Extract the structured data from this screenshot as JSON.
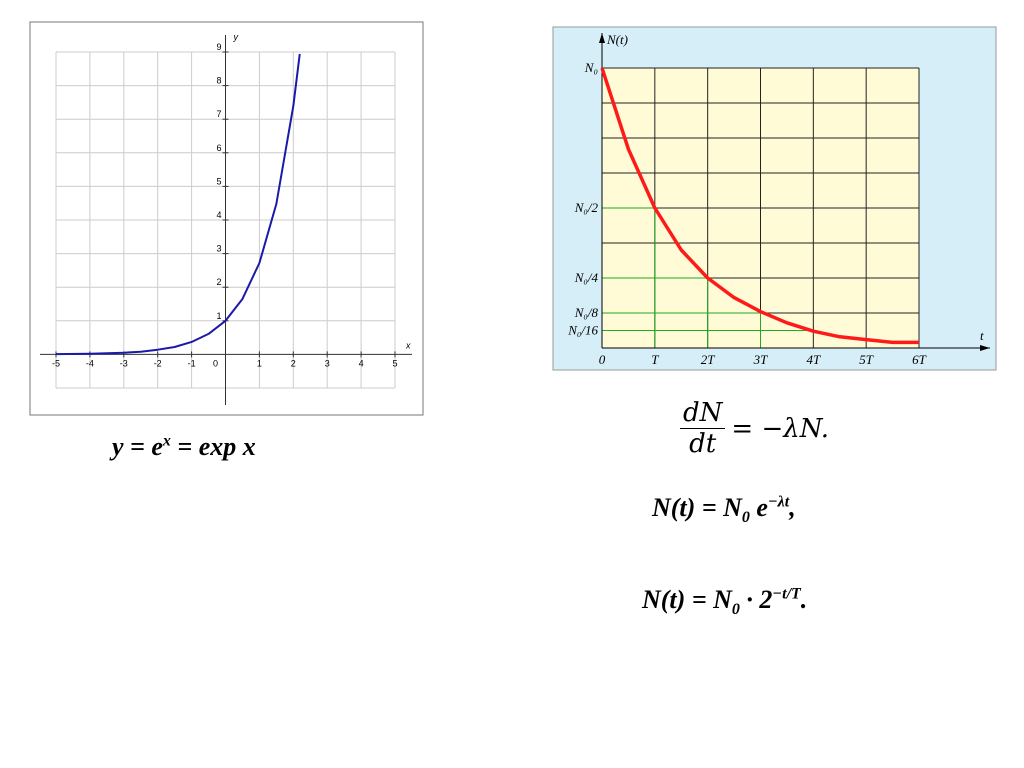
{
  "chart_data": [
    {
      "type": "line",
      "x_label": "x",
      "y_label": "y",
      "origin_label": "0",
      "x": [
        -5,
        -4,
        -3,
        -2.5,
        -2,
        -1.5,
        -1,
        -0.5,
        0,
        0.5,
        1,
        1.5,
        2,
        2.19
      ],
      "series": [
        {
          "color": "#1a1aa8",
          "values": [
            0.01,
            0.02,
            0.05,
            0.08,
            0.14,
            0.22,
            0.37,
            0.61,
            1,
            1.65,
            2.72,
            4.48,
            7.39,
            8.94
          ]
        }
      ],
      "xlim": [
        -5,
        5
      ],
      "ylim": [
        -1,
        9
      ],
      "xticks": [
        -5,
        -4,
        -3,
        -2,
        -1,
        1,
        2,
        3,
        4,
        5
      ],
      "yticks": [
        1,
        2,
        3,
        4,
        5,
        6,
        7,
        8,
        9
      ],
      "grid": true
    },
    {
      "type": "line",
      "x_label": "t",
      "y_label": "N(t)",
      "x": [
        0,
        0.5,
        1,
        1.5,
        2,
        2.5,
        3,
        3.5,
        4,
        4.5,
        5,
        5.5,
        6
      ],
      "series": [
        {
          "color": "#ff1a1a",
          "values": [
            1,
            0.71,
            0.5,
            0.35,
            0.25,
            0.18,
            0.13,
            0.09,
            0.06,
            0.04,
            0.03,
            0.02,
            0.02
          ]
        }
      ],
      "xlim": [
        0,
        6
      ],
      "ylim": [
        0,
        1
      ],
      "xticks": [
        0,
        {
          "value": 1,
          "label": "T"
        },
        {
          "value": 2,
          "label": "2T"
        },
        {
          "value": 3,
          "label": "3T"
        },
        {
          "value": 4,
          "label": "4T"
        },
        {
          "value": 5,
          "label": "5T"
        },
        {
          "value": 6,
          "label": "6T"
        }
      ],
      "yticks": [
        {
          "value": 1,
          "label": "N₀"
        },
        {
          "value": 0.5,
          "label": "N₀/2"
        },
        {
          "value": 0.25,
          "label": "N₀/4"
        },
        {
          "value": 0.125,
          "label": "N₀/8"
        },
        {
          "value": 0.0625,
          "label": "N₀/16"
        }
      ],
      "minor_yticks": [
        0.375,
        0.625,
        0.75,
        0.875
      ],
      "grid": true
    }
  ],
  "formulas": {
    "exp": {
      "main": "y = e",
      "sup": "x",
      "rest": " = exp x"
    },
    "diff": {
      "numerator": "dN",
      "denominator": "dt",
      "rest": "= −λN."
    },
    "decay": {
      "main": "N(t) = N",
      "sub": "0",
      "mid": " e",
      "sup": "−λt",
      "rest": ","
    },
    "half": {
      "main": "N(t) = N",
      "sub": "0",
      "mid": " · 2",
      "sup": "−t/T",
      "rest": "."
    }
  }
}
